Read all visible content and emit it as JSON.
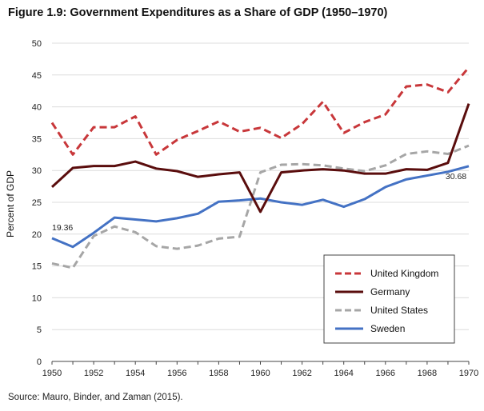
{
  "chart_data": {
    "type": "line",
    "title": "Figure 1.9: Government Expenditures as a Share of GDP (1950–1970)",
    "source": "Source: Mauro, Binder, and Zaman (2015).",
    "xlabel": "",
    "ylabel": "Percent of GDP",
    "xlim": [
      1950,
      1970
    ],
    "ylim": [
      0,
      50
    ],
    "x_ticks": [
      "1950",
      "1952",
      "1954",
      "1956",
      "1958",
      "1960",
      "1962",
      "1964",
      "1966",
      "1968",
      "1970"
    ],
    "y_ticks": [
      "0",
      "5",
      "10",
      "15",
      "20",
      "25",
      "30",
      "35",
      "40",
      "45",
      "50"
    ],
    "grid": "horizontal",
    "legend_position": "bottom-right",
    "x": [
      1950,
      1951,
      1952,
      1953,
      1954,
      1955,
      1956,
      1957,
      1958,
      1959,
      1960,
      1961,
      1962,
      1963,
      1964,
      1965,
      1966,
      1967,
      1968,
      1969,
      1970
    ],
    "series": [
      {
        "name": "United Kingdom",
        "color": "#c8373a",
        "dash": "dashed",
        "values": [
          37.5,
          32.5,
          36.8,
          36.8,
          38.5,
          32.5,
          34.8,
          36.2,
          37.7,
          36.1,
          36.7,
          35.1,
          37.3,
          40.8,
          35.9,
          37.6,
          38.8,
          43.2,
          43.5,
          42.3,
          46.2
        ]
      },
      {
        "name": "Germany",
        "color": "#5a0d0d",
        "dash": "solid",
        "values": [
          27.4,
          30.4,
          30.7,
          30.7,
          31.4,
          30.3,
          29.9,
          29.0,
          29.4,
          29.7,
          23.5,
          29.7,
          30.0,
          30.2,
          30.0,
          29.5,
          29.5,
          30.2,
          30.1,
          31.2,
          40.5
        ]
      },
      {
        "name": "United States",
        "color": "#a6a6a6",
        "dash": "dashed",
        "values": [
          15.4,
          14.7,
          19.7,
          21.2,
          20.3,
          18.1,
          17.7,
          18.2,
          19.3,
          19.6,
          29.7,
          30.9,
          31.0,
          30.8,
          30.3,
          29.9,
          30.8,
          32.6,
          33.0,
          32.6,
          33.9
        ]
      },
      {
        "name": "Sweden",
        "color": "#4472c4",
        "dash": "solid",
        "values": [
          19.36,
          18.0,
          20.2,
          22.6,
          22.3,
          22.0,
          22.5,
          23.2,
          25.1,
          25.3,
          25.6,
          25.0,
          24.6,
          25.4,
          24.3,
          25.5,
          27.4,
          28.6,
          29.2,
          29.8,
          30.68
        ]
      }
    ],
    "annotations": [
      {
        "series": "Sweden",
        "x": 1950,
        "text": "19.36"
      },
      {
        "series": "Sweden",
        "x": 1970,
        "text": "30.68"
      }
    ]
  }
}
